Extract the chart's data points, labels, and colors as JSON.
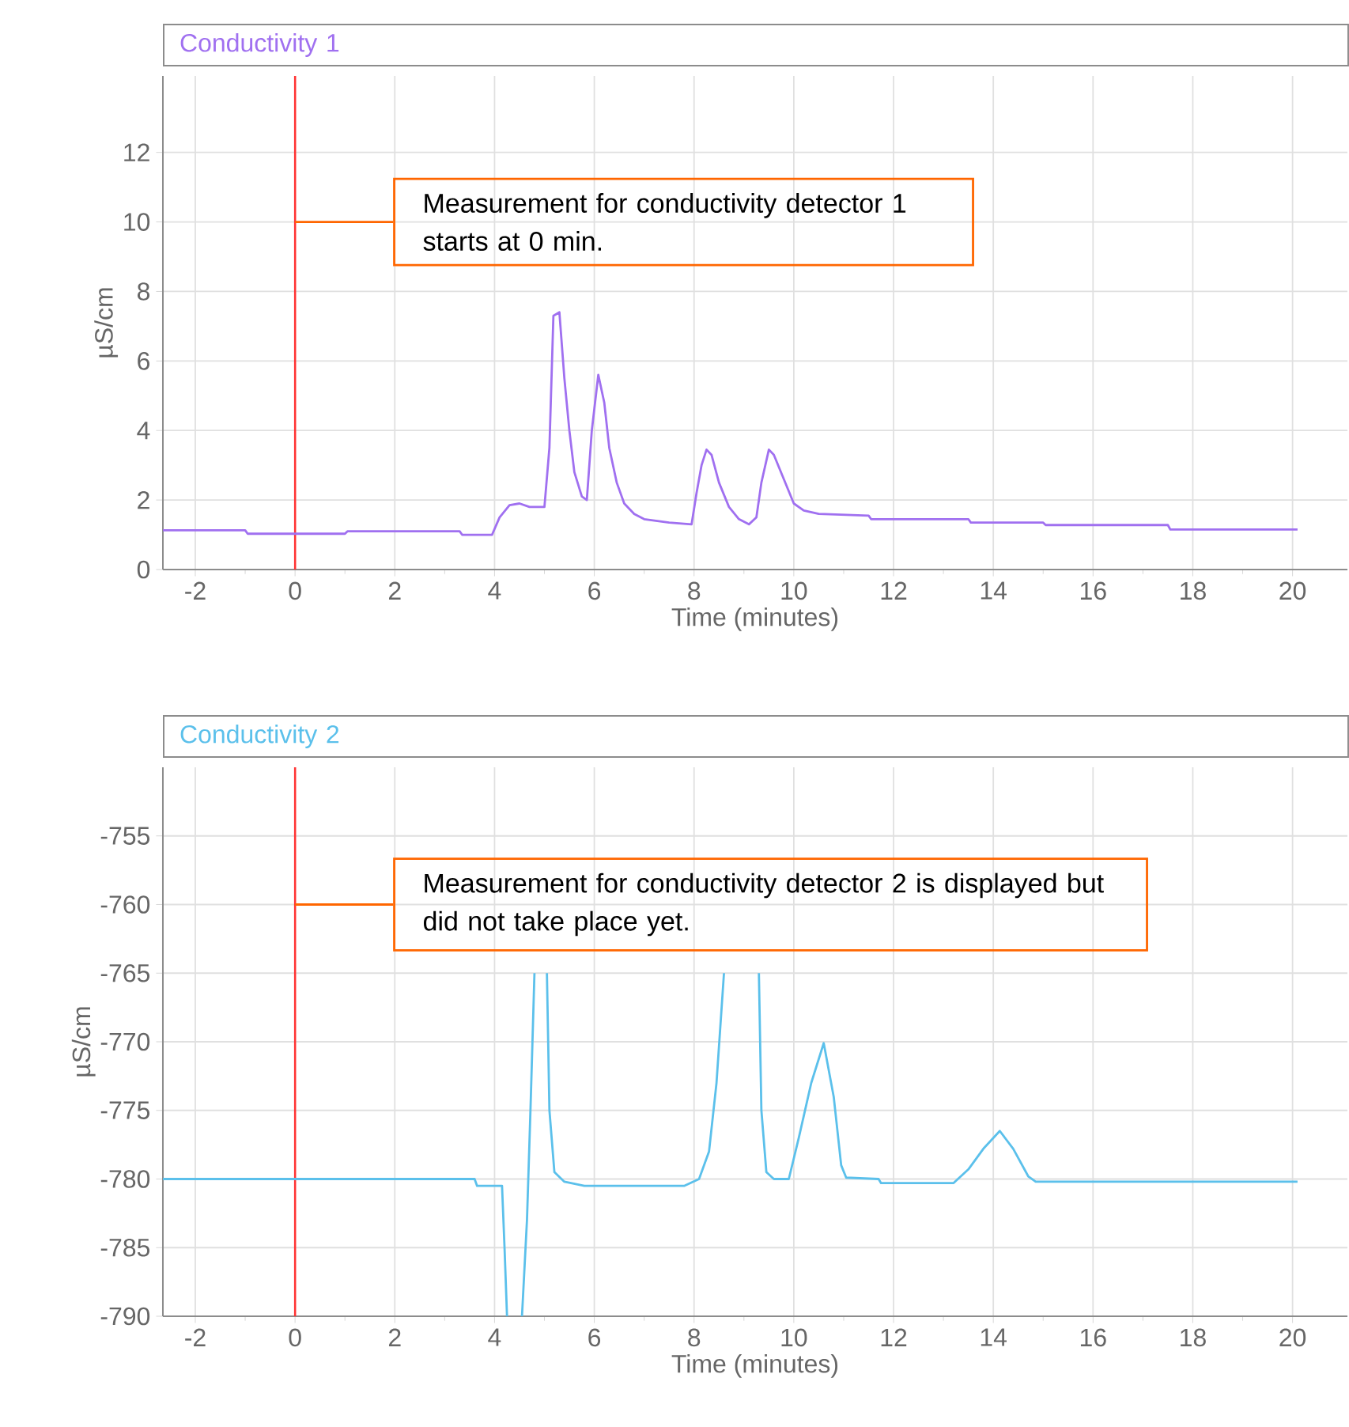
{
  "chart_data": [
    {
      "type": "line",
      "title": "Conductivity 1",
      "xlabel": "Time (minutes)",
      "ylabel": "µS/cm",
      "xlim": [
        -2.65,
        21.1
      ],
      "ylim": [
        0,
        14.2
      ],
      "xticks": [
        -2,
        0,
        2,
        4,
        6,
        8,
        10,
        12,
        14,
        16,
        18,
        20
      ],
      "yticks": [
        0,
        2,
        4,
        6,
        8,
        10,
        12
      ],
      "grid": true,
      "ref_lines": [
        {
          "axis": "x",
          "value": 0,
          "color": "#ff3333"
        }
      ],
      "annotations": [
        {
          "text": "Measurement for conductivity detector 1 starts at 0 min.",
          "x": 0,
          "y": 10
        }
      ],
      "series": [
        {
          "color": "#a070f0",
          "x": [
            -2.65,
            -1.0,
            -0.95,
            1.0,
            1.05,
            3.3,
            3.35,
            3.95,
            4.1,
            4.3,
            4.5,
            4.7,
            5.0,
            5.1,
            5.18,
            5.3,
            5.4,
            5.5,
            5.6,
            5.75,
            5.85,
            5.95,
            6.08,
            6.2,
            6.3,
            6.45,
            6.6,
            6.8,
            7.0,
            7.5,
            7.95,
            8.05,
            8.15,
            8.25,
            8.35,
            8.5,
            8.7,
            8.9,
            9.1,
            9.25,
            9.35,
            9.5,
            9.6,
            9.8,
            10.0,
            10.2,
            10.5,
            11.5,
            11.55,
            13.5,
            13.55,
            15.0,
            15.05,
            17.5,
            17.55,
            20.1
          ],
          "values": [
            1.13,
            1.13,
            1.03,
            1.03,
            1.1,
            1.1,
            1.0,
            1.0,
            1.5,
            1.85,
            1.9,
            1.8,
            1.8,
            3.5,
            7.3,
            7.4,
            5.5,
            4.0,
            2.8,
            2.1,
            2.0,
            4.0,
            5.6,
            4.8,
            3.5,
            2.5,
            1.9,
            1.6,
            1.45,
            1.35,
            1.3,
            2.2,
            3.0,
            3.45,
            3.3,
            2.5,
            1.8,
            1.45,
            1.3,
            1.5,
            2.5,
            3.45,
            3.3,
            2.6,
            1.9,
            1.7,
            1.6,
            1.55,
            1.45,
            1.45,
            1.35,
            1.35,
            1.28,
            1.28,
            1.15,
            1.15
          ]
        }
      ]
    },
    {
      "type": "line",
      "title": "Conductivity 2",
      "xlabel": "Time (minutes)",
      "ylabel": "µS/cm",
      "xlim": [
        -2.65,
        21.1
      ],
      "ylim": [
        -790,
        -750
      ],
      "xticks": [
        -2,
        0,
        2,
        4,
        6,
        8,
        10,
        12,
        14,
        16,
        18,
        20
      ],
      "yticks": [
        -790,
        -785,
        -780,
        -775,
        -770,
        -765,
        -760,
        -755
      ],
      "grid": true,
      "ref_lines": [
        {
          "axis": "x",
          "value": 0,
          "color": "#ff3333"
        }
      ],
      "annotations": [
        {
          "text": "Measurement for conductivity detector 2 is displayed but did not take place yet.",
          "x": 0,
          "y": -760
        }
      ],
      "series": [
        {
          "color": "#5bc0eb",
          "x": [
            -2.65,
            3.6,
            3.65,
            4.15,
            4.2,
            4.25,
            4.4,
            4.55,
            4.65,
            4.72,
            4.8,
            4.9,
            5.05,
            5.1,
            5.2,
            5.4,
            5.8,
            7.8,
            8.1,
            8.3,
            8.45,
            8.6,
            9.0,
            9.3,
            9.35,
            9.45,
            9.6,
            9.9,
            10.1,
            10.35,
            10.6,
            10.8,
            10.95,
            11.05,
            11.7,
            11.75,
            13.2,
            13.5,
            13.8,
            14.13,
            14.4,
            14.7,
            14.85,
            20.1
          ],
          "values": [
            -780,
            -780,
            -780.5,
            -780.5,
            -785,
            -790,
            null,
            -790,
            -783,
            -775,
            -765,
            null,
            -765,
            -775,
            -779.5,
            -780.2,
            -780.5,
            -780.5,
            -780,
            -778,
            -773,
            -765,
            null,
            -765,
            -775,
            -779.5,
            -780,
            -780,
            -777,
            -773,
            -770.1,
            -774,
            -779,
            -779.9,
            -780,
            -780.3,
            -780.3,
            -779.3,
            -777.8,
            -776.5,
            -777.8,
            -779.8,
            -780.2,
            -780.2
          ]
        }
      ]
    }
  ]
}
